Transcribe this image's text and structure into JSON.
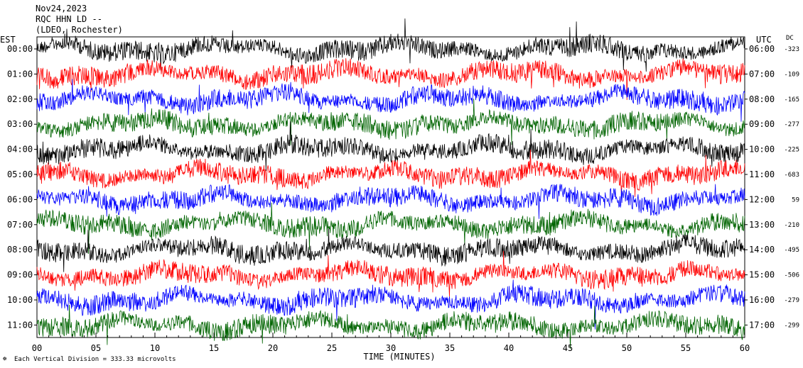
{
  "header": {
    "date": "Nov24,2023",
    "station": "RQC HHN LD --",
    "network": "(LDEO, Rochester)"
  },
  "chart_data": {
    "type": "line",
    "title": "",
    "xlabel": "TIME (MINUTES)",
    "left_axis_label": "EST",
    "right_axis_label": "UTC",
    "dc_label": "DC",
    "xlim": [
      0,
      60
    ],
    "x_ticks": [
      "00",
      "05",
      "10",
      "15",
      "20",
      "25",
      "30",
      "35",
      "40",
      "45",
      "50",
      "55",
      "60"
    ],
    "rows": [
      {
        "est": "00:00",
        "utc": "06:00",
        "dc": "-323",
        "color": "#000000"
      },
      {
        "est": "01:00",
        "utc": "07:00",
        "dc": "-109",
        "color": "#ff0000"
      },
      {
        "est": "02:00",
        "utc": "08:00",
        "dc": "-165",
        "color": "#0000ff"
      },
      {
        "est": "03:00",
        "utc": "09:00",
        "dc": "-277",
        "color": "#006400"
      },
      {
        "est": "04:00",
        "utc": "10:00",
        "dc": "-225",
        "color": "#000000"
      },
      {
        "est": "05:00",
        "utc": "11:00",
        "dc": "-683",
        "color": "#ff0000"
      },
      {
        "est": "06:00",
        "utc": "12:00",
        "dc": "59",
        "color": "#0000ff"
      },
      {
        "est": "07:00",
        "utc": "13:00",
        "dc": "-210",
        "color": "#006400"
      },
      {
        "est": "08:00",
        "utc": "14:00",
        "dc": "-495",
        "color": "#000000"
      },
      {
        "est": "09:00",
        "utc": "15:00",
        "dc": "-506",
        "color": "#ff0000"
      },
      {
        "est": "10:00",
        "utc": "16:00",
        "dc": "-279",
        "color": "#0000ff"
      },
      {
        "est": "11:00",
        "utc": "17:00",
        "dc": "-299",
        "color": "#006400"
      }
    ],
    "footer": "Each Vertical Division =  333.33 microvolts"
  }
}
